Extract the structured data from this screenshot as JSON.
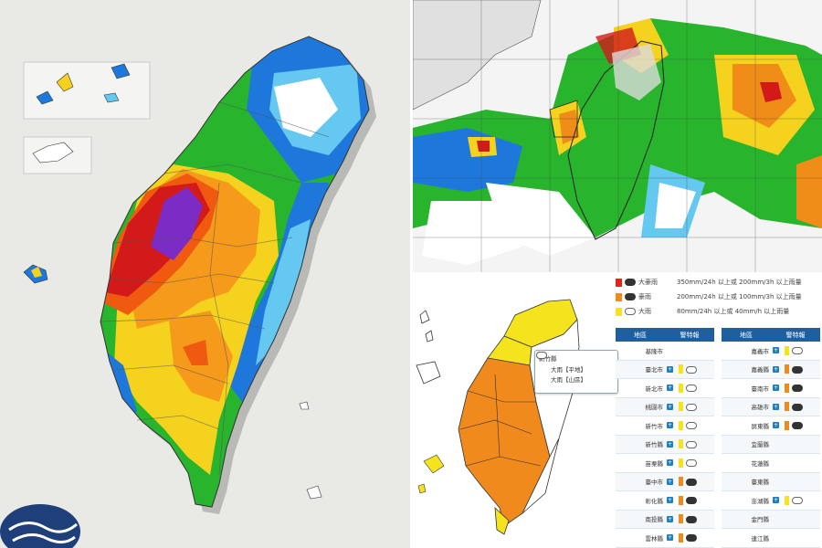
{
  "panels": {
    "rainfall_map": {
      "colors": [
        "#7b2cc4",
        "#d21a1a",
        "#f05a10",
        "#f59a1a",
        "#f5d21e",
        "#28b42c",
        "#1e78dc",
        "#64c8f0",
        "#ffffff"
      ]
    },
    "radar": {
      "colors": [
        "#ffffff",
        "#1e78dc",
        "#28b42c",
        "#f5d21e",
        "#f08c18",
        "#d21a1a"
      ]
    },
    "warning": {
      "legend": [
        {
          "level": "大豪雨",
          "desc": "350mm/24h 以上或 200mm/3h 以上雨量",
          "color": "#e3261c"
        },
        {
          "level": "豪雨",
          "desc": "200mm/24h 以上或 100mm/3h 以上雨量",
          "color": "#f08a1c"
        },
        {
          "level": "大雨",
          "desc": "80mm/24h 以上或 40mm/h 以上雨量",
          "color": "#f5e31e"
        }
      ],
      "table_headers": {
        "region": "地區",
        "warning": "警特報"
      },
      "left_rows": [
        {
          "name": "基隆市",
          "plus": false,
          "color": "",
          "icon": ""
        },
        {
          "name": "臺北市",
          "plus": true,
          "color": "#f5e31e",
          "icon": "light"
        },
        {
          "name": "新北市",
          "plus": true,
          "color": "#f5e31e",
          "icon": "light"
        },
        {
          "name": "桃園市",
          "plus": true,
          "color": "#f5e31e",
          "icon": "light"
        },
        {
          "name": "新竹市",
          "plus": true,
          "color": "#f5e31e",
          "icon": "light"
        },
        {
          "name": "新竹縣",
          "plus": true,
          "color": "#f5e31e",
          "icon": "light"
        },
        {
          "name": "苗栗縣",
          "plus": true,
          "color": "#f5e31e",
          "icon": "light"
        },
        {
          "name": "臺中市",
          "plus": true,
          "color": "#f08a1c",
          "icon": "dark"
        },
        {
          "name": "彰化縣",
          "plus": true,
          "color": "#f08a1c",
          "icon": "dark"
        },
        {
          "name": "南投縣",
          "plus": true,
          "color": "#f08a1c",
          "icon": "dark"
        },
        {
          "name": "雲林縣",
          "plus": true,
          "color": "#f08a1c",
          "icon": "dark"
        }
      ],
      "right_rows": [
        {
          "name": "嘉義市",
          "plus": true,
          "color": "#f5e31e",
          "icon": "light"
        },
        {
          "name": "嘉義縣",
          "plus": true,
          "color": "#f08a1c",
          "icon": "dark"
        },
        {
          "name": "臺南市",
          "plus": true,
          "color": "#f08a1c",
          "icon": "dark"
        },
        {
          "name": "高雄市",
          "plus": true,
          "color": "#f08a1c",
          "icon": "dark"
        },
        {
          "name": "屏東縣",
          "plus": true,
          "color": "#f08a1c",
          "icon": "dark"
        },
        {
          "name": "宜蘭縣",
          "plus": false,
          "color": "",
          "icon": ""
        },
        {
          "name": "花蓮縣",
          "plus": false,
          "color": "",
          "icon": ""
        },
        {
          "name": "臺東縣",
          "plus": false,
          "color": "",
          "icon": ""
        },
        {
          "name": "澎湖縣",
          "plus": true,
          "color": "#f5e31e",
          "icon": "light"
        },
        {
          "name": "金門縣",
          "plus": false,
          "color": "",
          "icon": ""
        },
        {
          "name": "連江縣",
          "plus": false,
          "color": "",
          "icon": ""
        }
      ],
      "popup": {
        "title": "新竹縣",
        "line1": "大雨【平地】",
        "line2": "大雨【山區】"
      }
    }
  }
}
